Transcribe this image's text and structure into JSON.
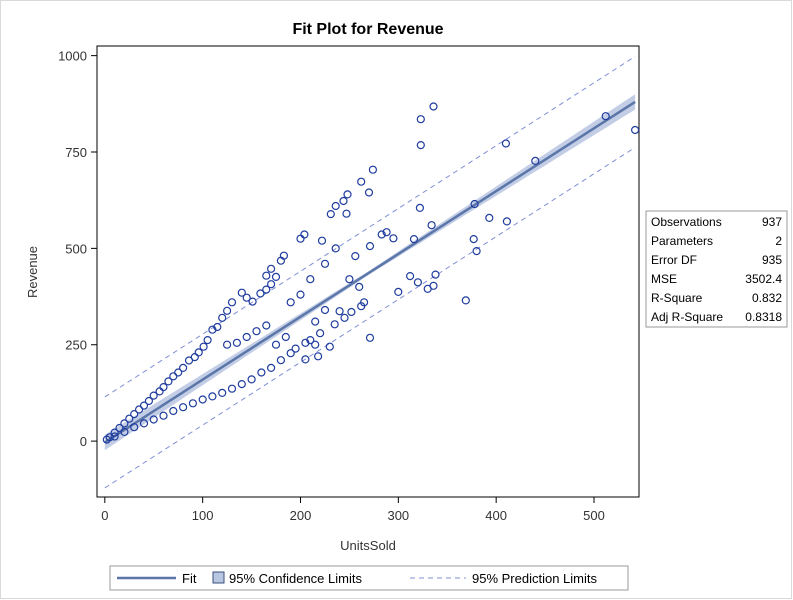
{
  "chart_data": {
    "type": "scatter",
    "title": "Fit Plot for Revenue",
    "xlabel": "UnitsSold",
    "ylabel": "Revenue",
    "xlim": [
      -8,
      546
    ],
    "ylim": [
      -145,
      1025
    ],
    "x_ticks": [
      0,
      100,
      200,
      300,
      400,
      500
    ],
    "y_ticks": [
      0,
      250,
      500,
      750,
      1000
    ],
    "grid": false,
    "fit": {
      "intercept": -3.5,
      "slope": 1.63,
      "x_range": [
        0,
        542
      ]
    },
    "prediction_offset": 118,
    "confidence_halfwidth": {
      "min": 5,
      "max": 20
    },
    "series": [
      {
        "name": "Revenue",
        "points": [
          [
            512,
            843
          ],
          [
            542,
            807
          ],
          [
            336,
            868
          ],
          [
            323,
            835
          ],
          [
            323,
            768
          ],
          [
            410,
            772
          ],
          [
            440,
            727
          ],
          [
            378,
            615
          ],
          [
            393,
            579
          ],
          [
            411,
            570
          ],
          [
            377,
            524
          ],
          [
            380,
            493
          ],
          [
            322,
            605
          ],
          [
            334,
            560
          ],
          [
            316,
            524
          ],
          [
            274,
            704
          ],
          [
            270,
            645
          ],
          [
            262,
            673
          ],
          [
            248,
            640
          ],
          [
            244,
            623
          ],
          [
            236,
            610
          ],
          [
            231,
            589
          ],
          [
            247,
            590
          ],
          [
            271,
            506
          ],
          [
            283,
            536
          ],
          [
            288,
            542
          ],
          [
            295,
            526
          ],
          [
            369,
            365
          ],
          [
            300,
            387
          ],
          [
            312,
            428
          ],
          [
            320,
            412
          ],
          [
            330,
            395
          ],
          [
            338,
            432
          ],
          [
            336,
            403
          ],
          [
            271,
            268
          ],
          [
            265,
            360
          ],
          [
            240,
            337
          ],
          [
            222,
            520
          ],
          [
            200,
            525
          ],
          [
            204,
            536
          ],
          [
            183,
            481
          ],
          [
            180,
            468
          ],
          [
            170,
            447
          ],
          [
            165,
            429
          ],
          [
            170,
            407
          ],
          [
            175,
            426
          ],
          [
            165,
            393
          ],
          [
            159,
            383
          ],
          [
            151,
            362
          ],
          [
            140,
            385
          ],
          [
            145,
            372
          ],
          [
            130,
            360
          ],
          [
            125,
            338
          ],
          [
            120,
            320
          ],
          [
            115,
            296
          ],
          [
            110,
            289
          ],
          [
            105,
            262
          ],
          [
            101,
            245
          ],
          [
            96,
            230
          ],
          [
            92,
            218
          ],
          [
            86,
            209
          ],
          [
            80,
            190
          ],
          [
            75,
            178
          ],
          [
            70,
            168
          ],
          [
            65,
            155
          ],
          [
            60,
            140
          ],
          [
            56,
            129
          ],
          [
            50,
            118
          ],
          [
            45,
            104
          ],
          [
            40,
            92
          ],
          [
            35,
            82
          ],
          [
            30,
            70
          ],
          [
            25,
            58
          ],
          [
            20,
            46
          ],
          [
            15,
            34
          ],
          [
            10,
            22
          ],
          [
            5,
            10
          ],
          [
            2,
            4
          ],
          [
            210,
            262
          ],
          [
            220,
            280
          ],
          [
            235,
            303
          ],
          [
            245,
            320
          ],
          [
            252,
            335
          ],
          [
            262,
            350
          ],
          [
            230,
            245
          ],
          [
            218,
            220
          ],
          [
            205,
            212
          ],
          [
            190,
            228
          ],
          [
            180,
            210
          ],
          [
            170,
            190
          ],
          [
            160,
            178
          ],
          [
            150,
            160
          ],
          [
            140,
            148
          ],
          [
            130,
            136
          ],
          [
            120,
            125
          ],
          [
            110,
            116
          ],
          [
            100,
            108
          ],
          [
            90,
            98
          ],
          [
            80,
            88
          ],
          [
            70,
            78
          ],
          [
            60,
            66
          ],
          [
            50,
            56
          ],
          [
            40,
            46
          ],
          [
            30,
            36
          ],
          [
            20,
            24
          ],
          [
            10,
            12
          ],
          [
            125,
            250
          ],
          [
            135,
            255
          ],
          [
            145,
            270
          ],
          [
            155,
            285
          ],
          [
            165,
            300
          ],
          [
            175,
            250
          ],
          [
            185,
            270
          ],
          [
            195,
            240
          ],
          [
            205,
            255
          ],
          [
            215,
            250
          ],
          [
            200,
            380
          ],
          [
            190,
            360
          ],
          [
            210,
            420
          ],
          [
            225,
            460
          ],
          [
            236,
            500
          ],
          [
            256,
            480
          ],
          [
            260,
            400
          ],
          [
            250,
            420
          ],
          [
            225,
            340
          ],
          [
            215,
            310
          ]
        ]
      }
    ],
    "legend": {
      "position": "bottom",
      "items": [
        {
          "label": "Fit",
          "kind": "line"
        },
        {
          "label": "95% Confidence Limits",
          "kind": "band"
        },
        {
          "label": "95% Prediction Limits",
          "kind": "dashed"
        }
      ]
    },
    "stats_table": [
      {
        "label": "Observations",
        "value": "937"
      },
      {
        "label": "Parameters",
        "value": "2"
      },
      {
        "label": "Error DF",
        "value": "935"
      },
      {
        "label": "MSE",
        "value": "3502.4"
      },
      {
        "label": "R-Square",
        "value": "0.832"
      },
      {
        "label": "Adj R-Square",
        "value": "0.8318"
      }
    ],
    "colors": {
      "marker": "#1f3c9e",
      "fit_line": "#5b76a8",
      "band": "#b8c6e2",
      "prediction": "#7f8fd6"
    }
  }
}
